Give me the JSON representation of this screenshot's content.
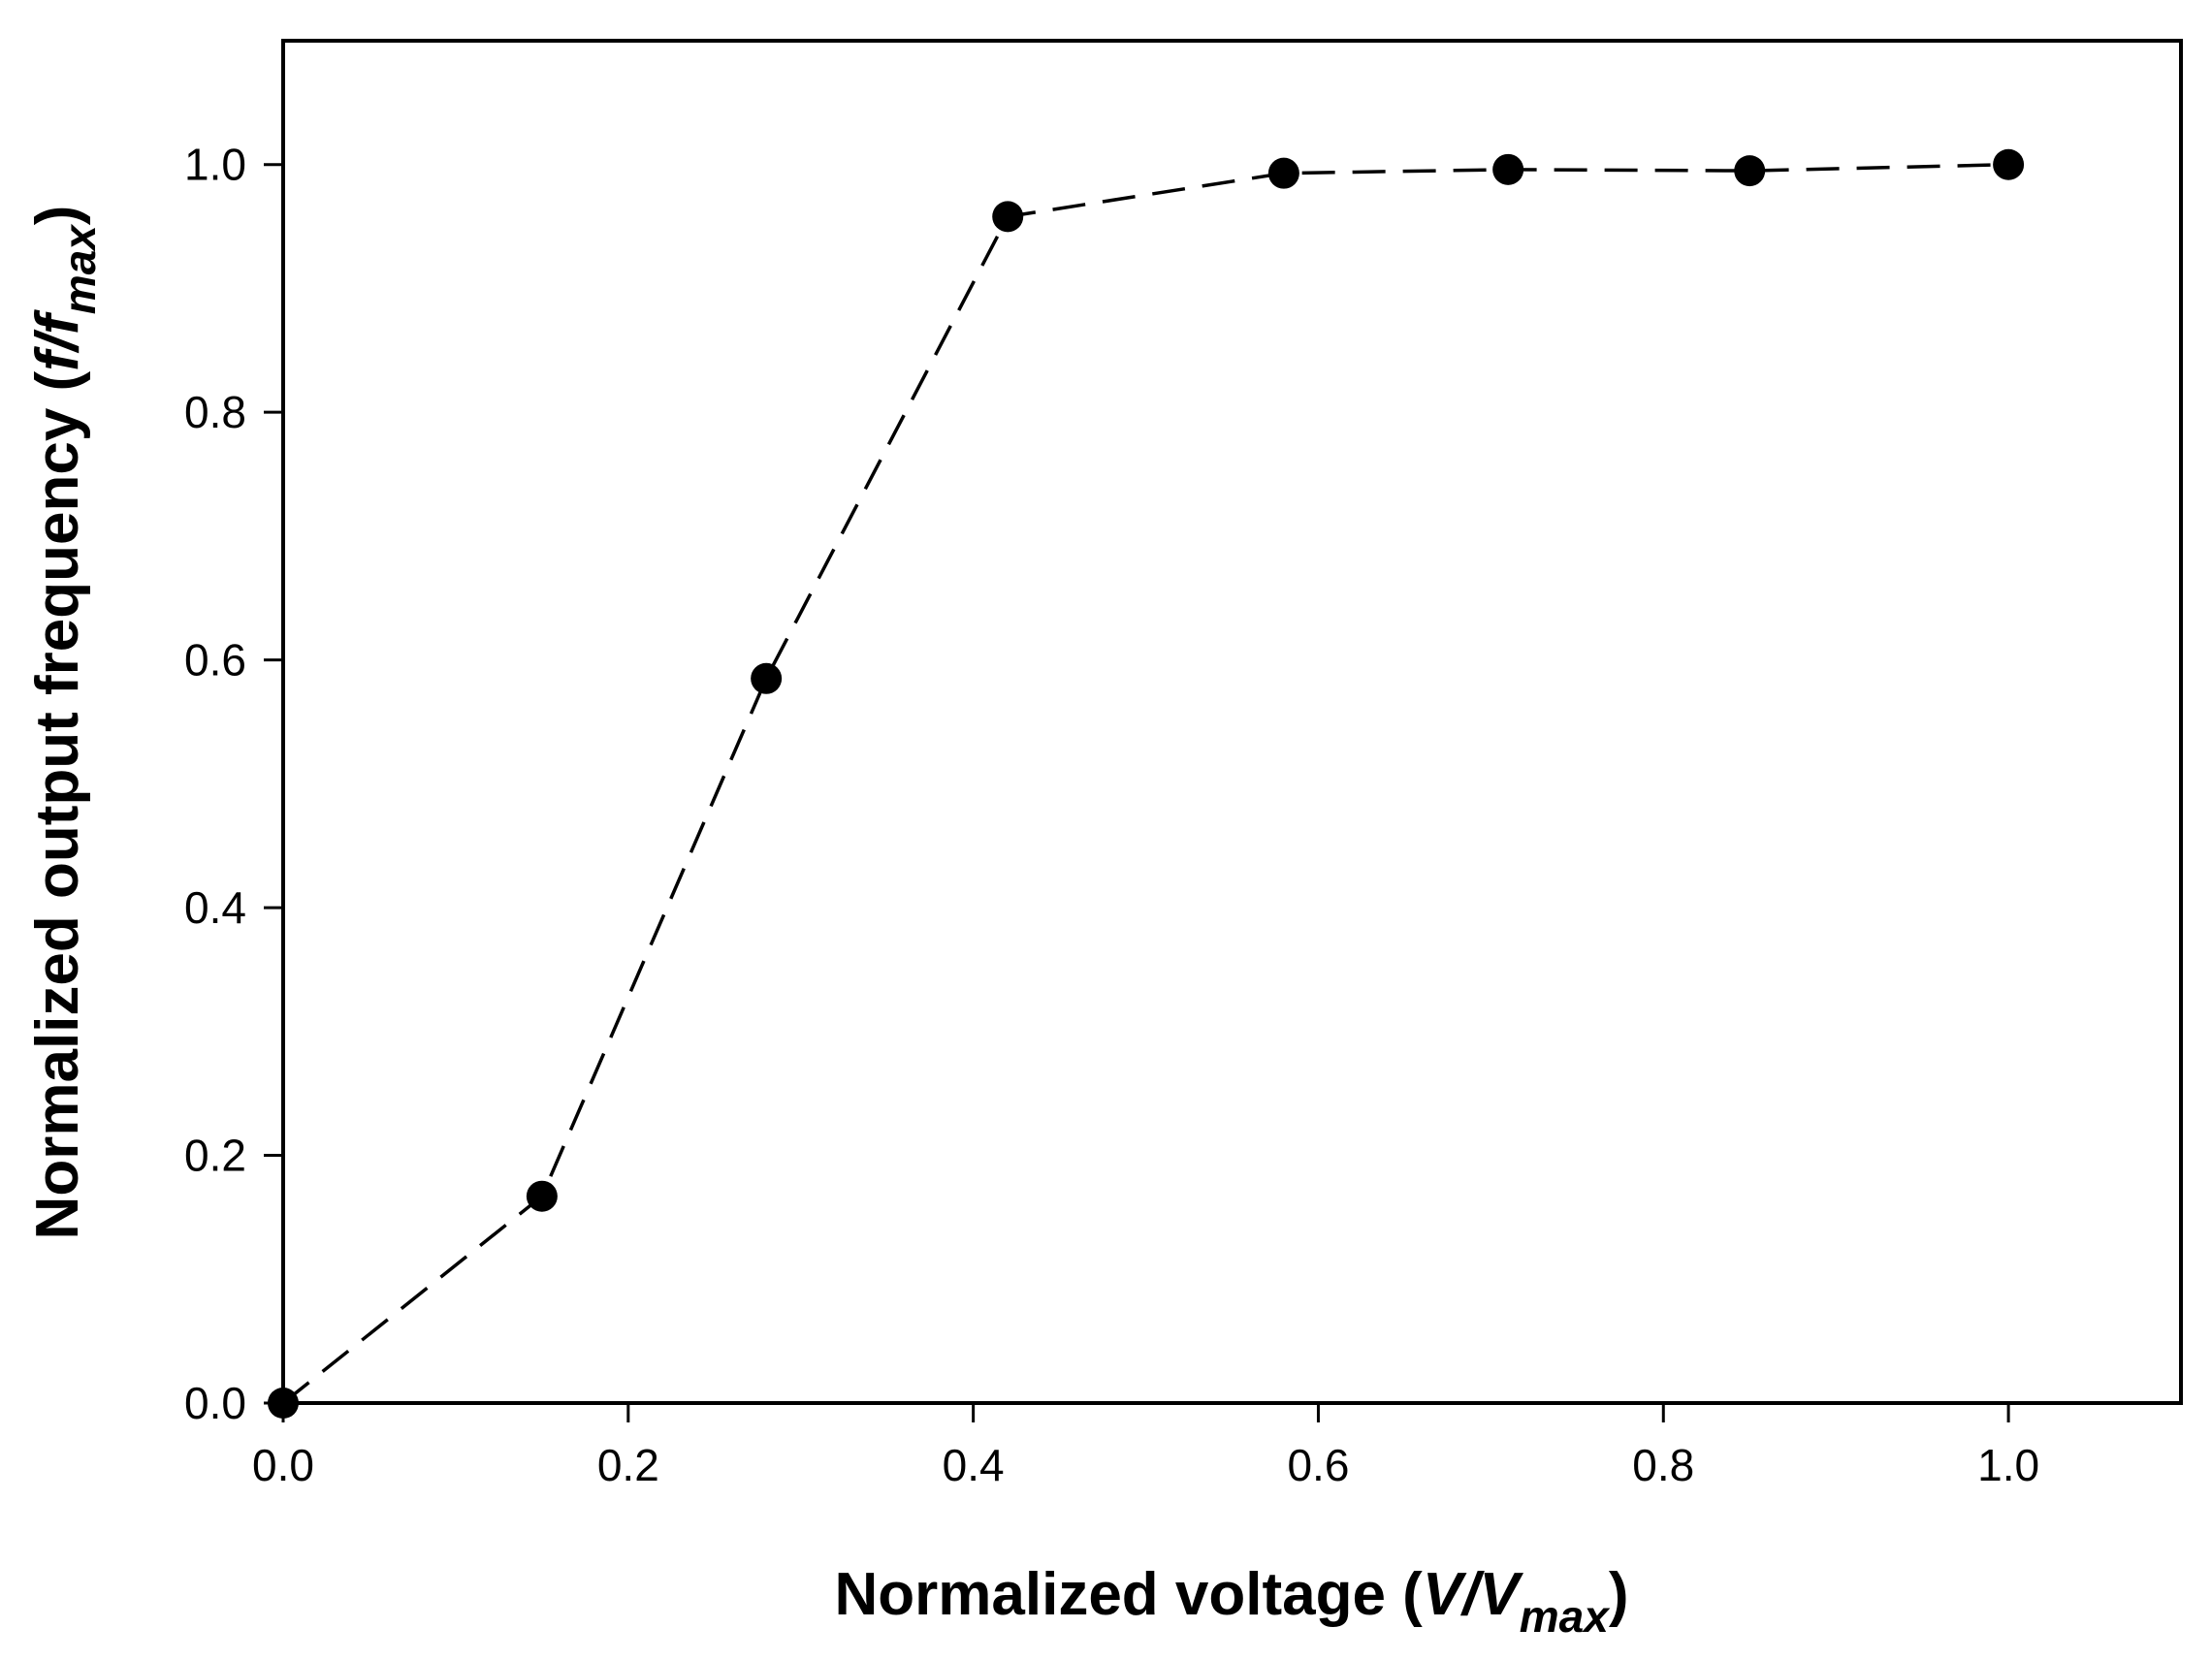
{
  "chart_data": {
    "type": "line",
    "title": "",
    "xlabel": {
      "prefix": "Normalized voltage (",
      "var": "V/V",
      "sub": "max",
      "suffix": ")"
    },
    "ylabel": {
      "prefix": "Normalized output frequency (",
      "var": "f/f",
      "sub": "max",
      "suffix": ")"
    },
    "xlim": [
      0.0,
      1.1
    ],
    "ylim": [
      0.0,
      1.1
    ],
    "xticks": [
      0.0,
      0.2,
      0.4,
      0.6,
      0.8,
      1.0
    ],
    "xtick_labels": [
      "0.0",
      "0.2",
      "0.4",
      "0.6",
      "0.8",
      "1.0"
    ],
    "yticks": [
      0.0,
      0.2,
      0.4,
      0.6,
      0.8,
      1.0
    ],
    "ytick_labels": [
      "0.0",
      "0.2",
      "0.4",
      "0.6",
      "0.8",
      "1.0"
    ],
    "grid": false,
    "series": [
      {
        "line_style": "dashed",
        "marker": "filled-circle",
        "color": "#000000",
        "x": [
          0.0,
          0.15,
          0.28,
          0.42,
          0.58,
          0.71,
          0.85,
          1.0
        ],
        "y": [
          0.0,
          0.167,
          0.585,
          0.958,
          0.993,
          0.996,
          0.995,
          1.0
        ]
      }
    ]
  }
}
